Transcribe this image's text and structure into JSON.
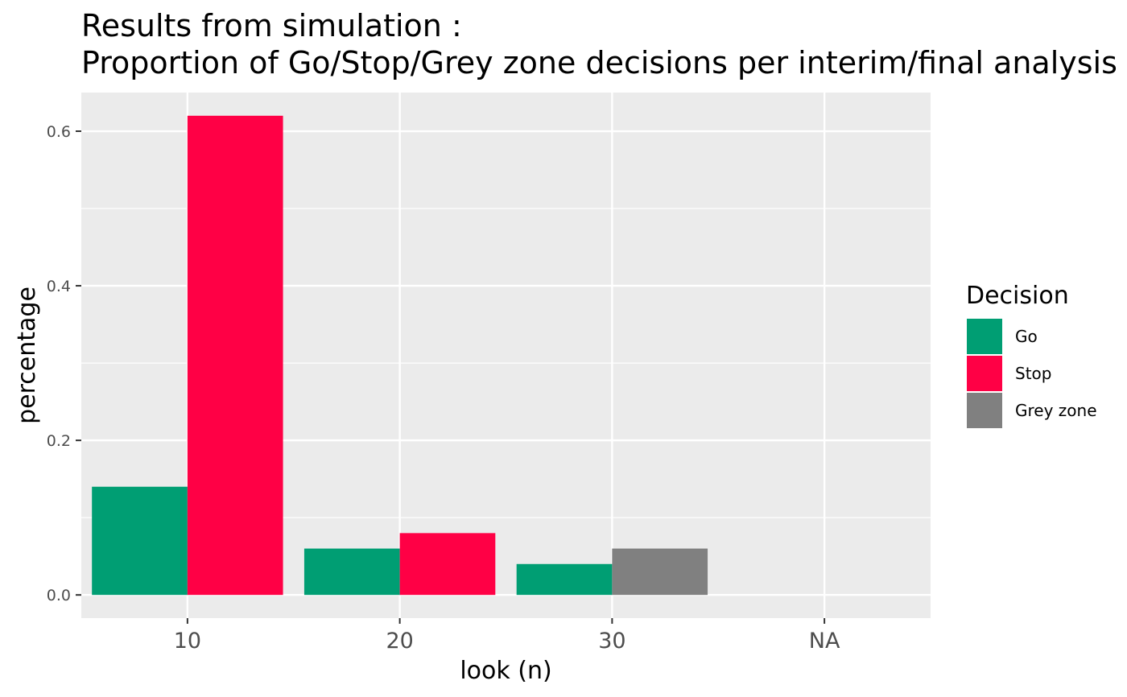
{
  "chart_data": {
    "type": "bar",
    "title_line1": "Results from simulation :",
    "title_line2": "Proportion of Go/Stop/Grey zone decisions per interim/final analysis",
    "xlabel": "look (n)",
    "ylabel": "percentage",
    "categories": [
      "10",
      "20",
      "30",
      "NA"
    ],
    "ylim": [
      -0.03,
      0.65
    ],
    "yticks": [
      0.0,
      0.2,
      0.4,
      0.6
    ],
    "ytick_labels": [
      "0.0",
      "0.2",
      "0.4",
      "0.6"
    ],
    "grid": true,
    "legend_position": "right",
    "legend_title": "Decision",
    "series": [
      {
        "name": "Go",
        "color": "#009E73",
        "values": [
          0.14,
          0.06,
          0.04,
          null
        ]
      },
      {
        "name": "Stop",
        "color": "#FF0045",
        "values": [
          0.62,
          0.08,
          null,
          null
        ]
      },
      {
        "name": "Grey zone",
        "color": "#808080",
        "values": [
          null,
          null,
          0.06,
          null
        ]
      }
    ],
    "panel_background": "#EBEBEB",
    "grid_color": "#FFFFFF"
  }
}
